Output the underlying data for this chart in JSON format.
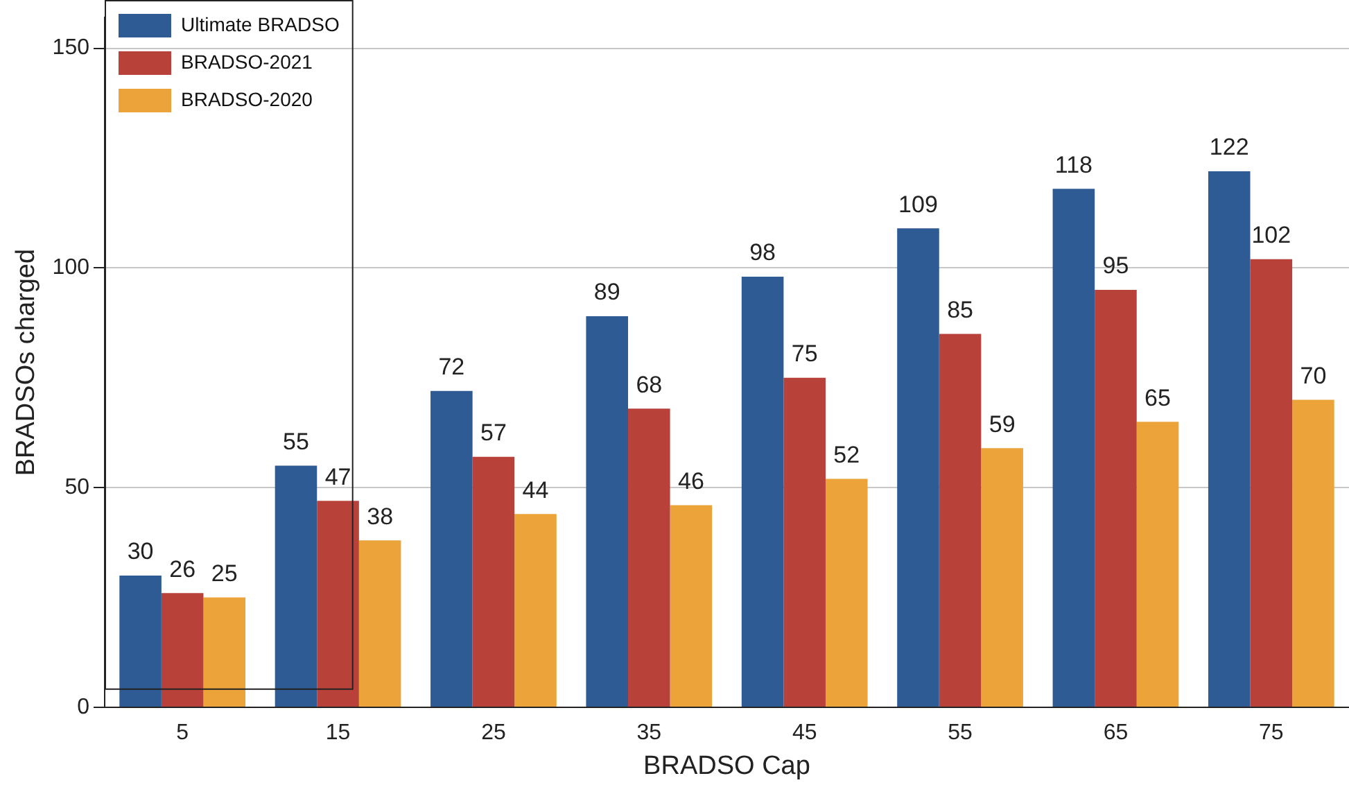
{
  "chart_data": {
    "type": "bar",
    "xlabel": "BRADSO Cap",
    "ylabel": "BRADSOs charged",
    "categories": [
      "5",
      "15",
      "25",
      "35",
      "45",
      "55",
      "65",
      "75"
    ],
    "series": [
      {
        "name": "Ultimate BRADSO",
        "color": "#2f5b95",
        "values": [
          30,
          55,
          72,
          89,
          98,
          109,
          118,
          122
        ]
      },
      {
        "name": "BRADSO-2021",
        "color": "#b8423a",
        "values": [
          26,
          47,
          57,
          68,
          75,
          85,
          95,
          102
        ]
      },
      {
        "name": "BRADSO-2020",
        "color": "#eba33a",
        "values": [
          25,
          38,
          44,
          46,
          52,
          59,
          65,
          70
        ]
      }
    ],
    "ylim": [
      0,
      157
    ],
    "yticks": [
      0,
      50,
      100,
      150
    ],
    "grid": "y",
    "legend": "top left",
    "data_labels": true
  }
}
